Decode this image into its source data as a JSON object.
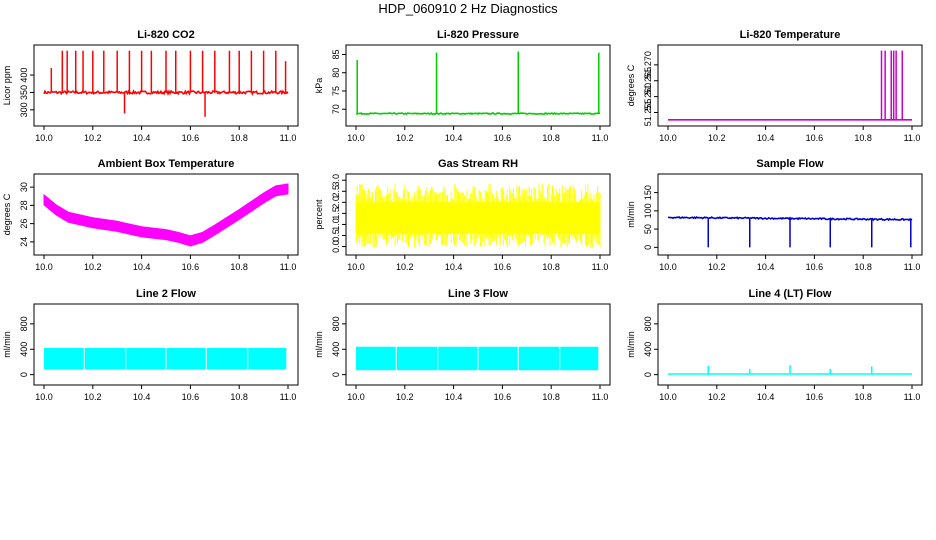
{
  "figure_title": "HDP_060910  2 Hz Diagnostics",
  "chart_data": [
    {
      "id": "co2",
      "type": "line",
      "title": "Li-820 CO2",
      "ylabel": "Licor ppm",
      "color": "#ff0000",
      "xlim": [
        10.0,
        11.0
      ],
      "ylim": [
        265,
        475
      ],
      "xticks": [
        "10.0",
        "10.2",
        "10.4",
        "10.6",
        "10.8",
        "11.0"
      ],
      "yticks": [
        {
          "v": 300,
          "label": "300"
        },
        {
          "v": 350,
          "label": "350"
        },
        {
          "v": 400,
          "label": "400"
        }
      ],
      "series": [
        {
          "pattern": "baseline_spikes",
          "baseline": 350,
          "noise": 4,
          "spikes": [
            [
              10.03,
              420
            ],
            [
              10.075,
              470
            ],
            [
              10.095,
              470
            ],
            [
              10.13,
              470
            ],
            [
              10.16,
              470
            ],
            [
              10.2,
              470
            ],
            [
              10.245,
              470
            ],
            [
              10.3,
              470
            ],
            [
              10.33,
              290
            ],
            [
              10.35,
              470
            ],
            [
              10.4,
              470
            ],
            [
              10.44,
              470
            ],
            [
              10.5,
              470
            ],
            [
              10.54,
              470
            ],
            [
              10.6,
              470
            ],
            [
              10.65,
              470
            ],
            [
              10.66,
              280
            ],
            [
              10.7,
              470
            ],
            [
              10.76,
              470
            ],
            [
              10.8,
              470
            ],
            [
              10.85,
              470
            ],
            [
              10.9,
              470
            ],
            [
              10.95,
              470
            ],
            [
              10.99,
              440
            ]
          ]
        }
      ]
    },
    {
      "id": "pressure",
      "type": "line",
      "title": "Li-820 Pressure",
      "ylabel": "kPa",
      "color": "#00cc00",
      "xlim": [
        10.0,
        11.0
      ],
      "ylim": [
        66.5,
        86.5
      ],
      "xticks": [
        "10.0",
        "10.2",
        "10.4",
        "10.6",
        "10.8",
        "11.0"
      ],
      "yticks": [
        {
          "v": 70,
          "label": "70"
        },
        {
          "v": 75,
          "label": "75"
        },
        {
          "v": 80,
          "label": "80"
        },
        {
          "v": 85,
          "label": "85"
        }
      ],
      "series": [
        {
          "pattern": "baseline_spikes",
          "baseline": 68.8,
          "noise": 0.15,
          "spikes": [
            [
              10.005,
              83.5
            ],
            [
              10.33,
              85.5
            ],
            [
              10.665,
              85.8
            ],
            [
              10.995,
              85.5
            ]
          ]
        }
      ]
    },
    {
      "id": "licor-temp",
      "type": "line",
      "title": "Li-820 Temperature",
      "ylabel": "degrees C",
      "color": "#cc00cc",
      "xlim": [
        10.0,
        11.0
      ],
      "ylim": [
        51.252,
        51.275
      ],
      "xticks": [
        "10.0",
        "10.2",
        "10.4",
        "10.6",
        "10.8",
        "11.0"
      ],
      "yticks": [
        {
          "v": 51.255,
          "label": "51.255"
        },
        {
          "v": 51.26,
          "label": "51.260"
        },
        {
          "v": 51.265,
          "label": "51.265"
        },
        {
          "v": 51.27,
          "label": "51.270"
        }
      ],
      "series": [
        {
          "pattern": "baseline_spikes",
          "baseline": 51.2527,
          "noise": 0,
          "spikes": [
            [
              10.875,
              51.2745
            ],
            [
              10.89,
              51.2745
            ],
            [
              10.915,
              51.2745
            ],
            [
              10.925,
              51.2745
            ],
            [
              10.935,
              51.2745
            ],
            [
              10.96,
              51.2745
            ]
          ]
        }
      ]
    },
    {
      "id": "ambient-temp",
      "type": "line",
      "title": "Ambient Box Temperature",
      "ylabel": "degrees C",
      "color": "#ff00ff",
      "xlim": [
        10.0,
        11.0
      ],
      "ylim": [
        23.0,
        31.0
      ],
      "xticks": [
        "10.0",
        "10.2",
        "10.4",
        "10.6",
        "10.8",
        "11.0"
      ],
      "yticks": [
        {
          "v": 24,
          "label": "24"
        },
        {
          "v": 26,
          "label": "26"
        },
        {
          "v": 28,
          "label": "28"
        },
        {
          "v": 30,
          "label": "30"
        }
      ],
      "series": [
        {
          "pattern": "band",
          "halfwidth": 0.55,
          "curve": [
            [
              10.0,
              28.6
            ],
            [
              10.05,
              27.5
            ],
            [
              10.1,
              26.7
            ],
            [
              10.2,
              26.1
            ],
            [
              10.3,
              25.7
            ],
            [
              10.4,
              25.1
            ],
            [
              10.5,
              24.8
            ],
            [
              10.55,
              24.5
            ],
            [
              10.6,
              24.1
            ],
            [
              10.65,
              24.5
            ],
            [
              10.7,
              25.3
            ],
            [
              10.8,
              27.0
            ],
            [
              10.9,
              28.8
            ],
            [
              10.95,
              29.6
            ],
            [
              11.0,
              29.8
            ]
          ]
        }
      ]
    },
    {
      "id": "rh",
      "type": "line",
      "title": "Gas Stream RH",
      "ylabel": "percent",
      "color": "#ffff00",
      "xlim": [
        10.0,
        11.0
      ],
      "ylim": [
        -0.2,
        3.1
      ],
      "xticks": [
        "10.0",
        "10.2",
        "10.4",
        "10.6",
        "10.8",
        "11.0"
      ],
      "yticks": [
        {
          "v": 0,
          "label": "0.0"
        },
        {
          "v": 0.5,
          "label": "0.5"
        },
        {
          "v": 1.0,
          "label": "1.0"
        },
        {
          "v": 1.5,
          "label": "1.5"
        },
        {
          "v": 2.0,
          "label": "2.0"
        },
        {
          "v": 2.5,
          "label": "2.5"
        },
        {
          "v": 3.0,
          "label": "3.0"
        }
      ],
      "series": [
        {
          "pattern": "noise",
          "low": -0.05,
          "high": 2.85,
          "core_low": 0.6,
          "core_high": 2.0
        }
      ]
    },
    {
      "id": "sample-flow",
      "type": "line",
      "title": "Sample Flow",
      "ylabel": "ml/min",
      "color": "#0000cc",
      "xlim": [
        10.0,
        11.0
      ],
      "ylim": [
        -10,
        190
      ],
      "xticks": [
        "10.0",
        "10.2",
        "10.4",
        "10.6",
        "10.8",
        "11.0"
      ],
      "yticks": [
        {
          "v": 0,
          "label": "0"
        },
        {
          "v": 50,
          "label": "50"
        },
        {
          "v": 100,
          "label": "100"
        },
        {
          "v": 150,
          "label": "150"
        }
      ],
      "series": [
        {
          "pattern": "baseline_spikes",
          "baseline": 82,
          "noise": 2,
          "drift": -6,
          "spikes": [
            [
              10.165,
              0
            ],
            [
              10.335,
              0
            ],
            [
              10.5,
              0
            ],
            [
              10.665,
              0
            ],
            [
              10.835,
              0
            ],
            [
              10.995,
              0
            ]
          ]
        }
      ]
    },
    {
      "id": "line2-flow",
      "type": "line",
      "title": "Line 2 Flow",
      "ylabel": "ml/min",
      "color": "#00ffff",
      "xlim": [
        10.0,
        11.0
      ],
      "ylim": [
        -100,
        1050
      ],
      "xticks": [
        "10.0",
        "10.2",
        "10.4",
        "10.6",
        "10.8",
        "11.0"
      ],
      "yticks": [
        {
          "v": 0,
          "label": "0"
        },
        {
          "v": 400,
          "label": "400"
        },
        {
          "v": 800,
          "label": "800"
        }
      ],
      "series": [
        {
          "pattern": "block",
          "low": 80,
          "high": 420,
          "gaps": [
            10.165,
            10.335,
            10.5,
            10.665,
            10.835,
            10.995
          ]
        }
      ]
    },
    {
      "id": "line3-flow",
      "type": "line",
      "title": "Line 3 Flow",
      "ylabel": "ml/min",
      "color": "#00ffff",
      "xlim": [
        10.0,
        11.0
      ],
      "ylim": [
        -100,
        1050
      ],
      "xticks": [
        "10.0",
        "10.2",
        "10.4",
        "10.6",
        "10.8",
        "11.0"
      ],
      "yticks": [
        {
          "v": 0,
          "label": "0"
        },
        {
          "v": 400,
          "label": "400"
        },
        {
          "v": 800,
          "label": "800"
        }
      ],
      "series": [
        {
          "pattern": "block",
          "low": 70,
          "high": 440,
          "gaps": [
            10.165,
            10.335,
            10.5,
            10.665,
            10.835,
            10.995
          ]
        }
      ]
    },
    {
      "id": "line4-flow",
      "type": "line",
      "title": "Line 4 (LT) Flow",
      "ylabel": "ml/min",
      "color": "#00ffff",
      "xlim": [
        10.0,
        11.0
      ],
      "ylim": [
        -100,
        1050
      ],
      "xticks": [
        "10.0",
        "10.2",
        "10.4",
        "10.6",
        "10.8",
        "11.0"
      ],
      "yticks": [
        {
          "v": 0,
          "label": "0"
        },
        {
          "v": 400,
          "label": "400"
        },
        {
          "v": 800,
          "label": "800"
        }
      ],
      "series": [
        {
          "pattern": "baseline_spikes",
          "baseline": 10,
          "noise": 0,
          "spikes": [
            [
              10.165,
              140
            ],
            [
              10.335,
              90
            ],
            [
              10.5,
              150
            ],
            [
              10.665,
              90
            ],
            [
              10.835,
              130
            ]
          ]
        }
      ]
    }
  ]
}
